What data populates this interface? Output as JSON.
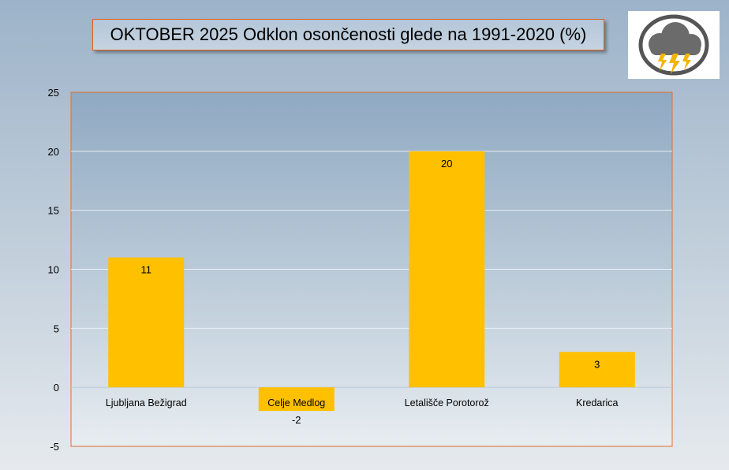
{
  "chart_data": {
    "type": "bar",
    "title": "OKTOBER 2025 Odklon osončenosti glede na 1991-2020 (%)",
    "categories": [
      "Ljubljana Bežigrad",
      "Celje Medlog",
      "Letališče Porotorož",
      "Kredarica"
    ],
    "values": [
      11,
      -2,
      20,
      3
    ],
    "data_labels": [
      "11",
      "-2",
      "20",
      "3"
    ],
    "xlabel": "",
    "ylabel": "",
    "ylim": [
      -5,
      25
    ],
    "yticks": [
      "-5",
      "0",
      "5",
      "10",
      "15",
      "20",
      "25"
    ],
    "grid": true,
    "bar_color": "#ffc000"
  },
  "logo": {
    "icon": "thunderstorm-icon"
  }
}
